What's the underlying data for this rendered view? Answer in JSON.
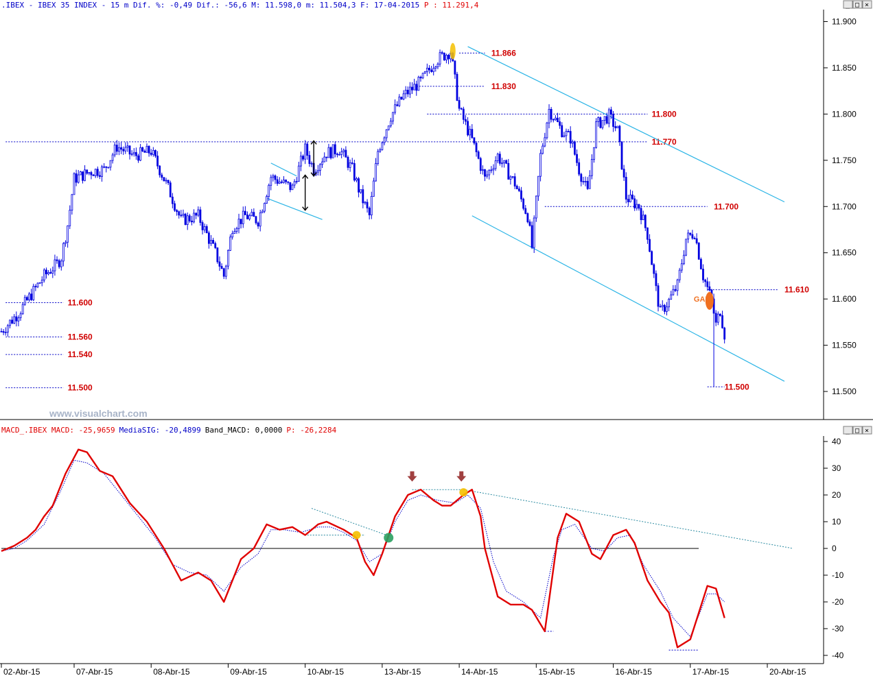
{
  "price_panel": {
    "header": {
      "prefix": ".IBEX - IBEX 35 INDEX -  15 m Dif. %: -0,49 Dif.: -56,6 M: 11.598,0 m: 11.504,3 F: 17-04-2015 ",
      "last_label": "P : 11.291,4",
      "colors": {
        "text": "#0000c8",
        "last": "#e00000"
      }
    },
    "watermark": "www.visualchart.com",
    "gap_label": "GAP",
    "colors": {
      "candles": "#0000e0",
      "channel": "#2ab4e6",
      "levels": "#0000c8",
      "level_text": "#d00000",
      "gap": "#f07020",
      "highlight": "#f5c000"
    }
  },
  "macd_panel": {
    "header": {
      "macd": "MACD_.IBEX MACD: -25,9659",
      "signal": "MediaSIG: -20,4899",
      "band": "Band_MACD: 0,0000",
      "last": "P: -26,2284"
    },
    "colors": {
      "macd": "#e00000",
      "signal": "#0000c8",
      "zero": "#000000",
      "arrow": "#a04040",
      "yellow": "#f5c000",
      "green": "#2aa060"
    }
  },
  "chart_data": [
    {
      "type": "candlestick",
      "instrument": "IBEX 35",
      "timeframe": "15 m",
      "ylim": [
        11480,
        11910
      ],
      "y_ticks": [
        11500,
        11550,
        11600,
        11650,
        11700,
        11750,
        11800,
        11850,
        11900
      ],
      "y_tick_labels": [
        "11.500",
        "11.550",
        "11.600",
        "11.650",
        "11.700",
        "11.750",
        "11.800",
        "11.850",
        "11.900"
      ],
      "x_ticks": [
        {
          "label": "02-Abr-15",
          "bar": 0
        },
        {
          "label": "07-Abr-15",
          "bar": 34
        },
        {
          "label": "08-Abr-15",
          "bar": 70
        },
        {
          "label": "09-Abr-15",
          "bar": 106
        },
        {
          "label": "10-Abr-15",
          "bar": 142
        },
        {
          "label": "13-Abr-15",
          "bar": 178
        },
        {
          "label": "14-Abr-15",
          "bar": 214
        },
        {
          "label": "15-Abr-15",
          "bar": 250
        },
        {
          "label": "16-Abr-15",
          "bar": 286
        },
        {
          "label": "17-Abr-15",
          "bar": 322
        },
        {
          "label": "20-Abr-15",
          "bar": 358
        }
      ],
      "total_bars": 392,
      "price_path": [
        [
          0,
          11565
        ],
        [
          8,
          11585
        ],
        [
          14,
          11605
        ],
        [
          20,
          11625
        ],
        [
          26,
          11638
        ],
        [
          28,
          11645
        ],
        [
          31,
          11680
        ],
        [
          34,
          11730
        ],
        [
          42,
          11738
        ],
        [
          48,
          11740
        ],
        [
          54,
          11765
        ],
        [
          62,
          11755
        ],
        [
          70,
          11760
        ],
        [
          78,
          11720
        ],
        [
          84,
          11685
        ],
        [
          92,
          11690
        ],
        [
          100,
          11650
        ],
        [
          104,
          11625
        ],
        [
          108,
          11678
        ],
        [
          114,
          11690
        ],
        [
          120,
          11685
        ],
        [
          126,
          11732
        ],
        [
          136,
          11720
        ],
        [
          142,
          11762
        ],
        [
          146,
          11740
        ],
        [
          152,
          11758
        ],
        [
          158,
          11762
        ],
        [
          164,
          11740
        ],
        [
          168,
          11712
        ],
        [
          172,
          11690
        ],
        [
          176,
          11760
        ],
        [
          182,
          11798
        ],
        [
          188,
          11820
        ],
        [
          196,
          11835
        ],
        [
          203,
          11858
        ],
        [
          210,
          11868
        ],
        [
          214,
          11805
        ],
        [
          220,
          11772
        ],
        [
          226,
          11730
        ],
        [
          232,
          11755
        ],
        [
          240,
          11725
        ],
        [
          246,
          11690
        ],
        [
          248,
          11656
        ],
        [
          252,
          11755
        ],
        [
          256,
          11805
        ],
        [
          262,
          11782
        ],
        [
          266,
          11774
        ],
        [
          270,
          11740
        ],
        [
          274,
          11715
        ],
        [
          278,
          11788
        ],
        [
          284,
          11798
        ],
        [
          288,
          11782
        ],
        [
          292,
          11710
        ],
        [
          298,
          11700
        ],
        [
          302,
          11670
        ],
        [
          306,
          11610
        ],
        [
          308,
          11585
        ],
        [
          312,
          11598
        ],
        [
          316,
          11615
        ],
        [
          320,
          11665
        ],
        [
          324,
          11672
        ],
        [
          328,
          11625
        ],
        [
          330,
          11612
        ],
        [
          332,
          11598
        ],
        [
          334,
          11572
        ],
        [
          336,
          11588
        ],
        [
          338,
          11562
        ]
      ],
      "spike_low": {
        "bar": 333,
        "value": 11505
      },
      "levels": [
        {
          "label": "11.866",
          "value": 11866,
          "x0_bar": 214,
          "x1_bar": 226,
          "label_bar": 229
        },
        {
          "label": "11.830",
          "value": 11830,
          "x0_bar": 194,
          "x1_bar": 226,
          "label_bar": 229
        },
        {
          "label": "11.800",
          "value": 11800,
          "x0_bar": 199,
          "x1_bar": 302,
          "label_bar": 304
        },
        {
          "label": "11.770",
          "value": 11770,
          "x0_bar": 2,
          "x1_bar": 302,
          "label_bar": 304
        },
        {
          "label": "11.700",
          "value": 11700,
          "x0_bar": 254,
          "x1_bar": 330,
          "label_bar": 333
        },
        {
          "label": "11.610",
          "value": 11610,
          "x0_bar": 330,
          "x1_bar": 363,
          "label_bar": 366
        },
        {
          "label": "11.600",
          "value": 11596,
          "x0_bar": 2,
          "x1_bar": 29,
          "label_bar": 31
        },
        {
          "label": "11.560",
          "value": 11559,
          "x0_bar": 2,
          "x1_bar": 29,
          "label_bar": 31
        },
        {
          "label": "11.540",
          "value": 11540,
          "x0_bar": 2,
          "x1_bar": 29,
          "label_bar": 31
        },
        {
          "label": "11.500",
          "value": 11504,
          "x0_bar": 2,
          "x1_bar": 29,
          "label_bar": 31
        },
        {
          "label": "11.500",
          "value": 11505,
          "x0_bar": 330,
          "x1_bar": 338,
          "label_bar": 338
        }
      ],
      "channel": {
        "upper": [
          [
            218,
            11873
          ],
          [
            366,
            11705
          ]
        ],
        "lower": [
          [
            220,
            11690
          ],
          [
            366,
            11511
          ]
        ]
      },
      "flag": {
        "upper": [
          [
            126,
            11747
          ],
          [
            138,
            11733
          ]
        ],
        "lower": [
          [
            124,
            11709
          ],
          [
            150,
            11686
          ]
        ]
      }
    },
    {
      "type": "line",
      "title": "MACD_.IBEX",
      "ylim": [
        -42,
        42
      ],
      "y_ticks": [
        40,
        30,
        20,
        10,
        0,
        -10,
        -20,
        -30,
        -40
      ],
      "series": [
        {
          "name": "MACD",
          "values": [
            [
              0,
              -1
            ],
            [
              6,
              1
            ],
            [
              12,
              4
            ],
            [
              16,
              7
            ],
            [
              20,
              12
            ],
            [
              24,
              16
            ],
            [
              30,
              28
            ],
            [
              36,
              37
            ],
            [
              40,
              36
            ],
            [
              46,
              29
            ],
            [
              52,
              27
            ],
            [
              60,
              17
            ],
            [
              68,
              10
            ],
            [
              76,
              0
            ],
            [
              84,
              -12
            ],
            [
              92,
              -9
            ],
            [
              98,
              -12
            ],
            [
              104,
              -20
            ],
            [
              112,
              -4
            ],
            [
              118,
              0
            ],
            [
              124,
              9
            ],
            [
              130,
              7
            ],
            [
              136,
              8
            ],
            [
              142,
              5
            ],
            [
              148,
              9
            ],
            [
              152,
              10
            ],
            [
              160,
              7
            ],
            [
              166,
              4
            ],
            [
              170,
              -5
            ],
            [
              174,
              -10
            ],
            [
              178,
              -2
            ],
            [
              184,
              12
            ],
            [
              190,
              20
            ],
            [
              196,
              22
            ],
            [
              202,
              18
            ],
            [
              206,
              16
            ],
            [
              210,
              16
            ],
            [
              216,
              20
            ],
            [
              220,
              22
            ],
            [
              224,
              12
            ],
            [
              226,
              0
            ],
            [
              232,
              -18
            ],
            [
              238,
              -21
            ],
            [
              244,
              -21
            ],
            [
              248,
              -23
            ],
            [
              254,
              -31
            ],
            [
              260,
              4
            ],
            [
              264,
              13
            ],
            [
              270,
              10
            ],
            [
              276,
              -2
            ],
            [
              280,
              -4
            ],
            [
              286,
              5
            ],
            [
              292,
              7
            ],
            [
              296,
              2
            ],
            [
              302,
              -12
            ],
            [
              308,
              -20
            ],
            [
              312,
              -24
            ],
            [
              316,
              -37
            ],
            [
              322,
              -34
            ],
            [
              330,
              -14
            ],
            [
              334,
              -15
            ],
            [
              338,
              -26
            ]
          ]
        },
        {
          "name": "MediaSIG",
          "values": [
            [
              0,
              -1
            ],
            [
              6,
              0
            ],
            [
              12,
              3
            ],
            [
              20,
              9
            ],
            [
              28,
              22
            ],
            [
              34,
              33
            ],
            [
              40,
              32
            ],
            [
              48,
              28
            ],
            [
              56,
              20
            ],
            [
              64,
              12
            ],
            [
              72,
              4
            ],
            [
              80,
              -6
            ],
            [
              88,
              -9
            ],
            [
              96,
              -10
            ],
            [
              104,
              -16
            ],
            [
              112,
              -7
            ],
            [
              120,
              -2
            ],
            [
              126,
              7
            ],
            [
              132,
              7
            ],
            [
              140,
              6
            ],
            [
              148,
              8
            ],
            [
              154,
              8
            ],
            [
              160,
              6
            ],
            [
              166,
              3
            ],
            [
              172,
              -5
            ],
            [
              178,
              -2
            ],
            [
              184,
              10
            ],
            [
              190,
              18
            ],
            [
              196,
              20
            ],
            [
              204,
              18
            ],
            [
              212,
              17
            ],
            [
              218,
              20
            ],
            [
              224,
              15
            ],
            [
              230,
              -5
            ],
            [
              236,
              -16
            ],
            [
              244,
              -20
            ],
            [
              252,
              -26
            ],
            [
              258,
              -3
            ],
            [
              262,
              7
            ],
            [
              268,
              9
            ],
            [
              276,
              0
            ],
            [
              282,
              -1
            ],
            [
              288,
              4
            ],
            [
              294,
              5
            ],
            [
              300,
              -6
            ],
            [
              308,
              -16
            ],
            [
              314,
              -26
            ],
            [
              322,
              -33
            ],
            [
              330,
              -17
            ],
            [
              334,
              -17
            ],
            [
              338,
              -20
            ]
          ]
        }
      ],
      "annotations": {
        "min_lines": [
          [
            254,
            258,
            -31
          ],
          [
            312,
            326,
            -38
          ]
        ],
        "upper_trend": [
          [
            192,
            215,
            22
          ],
          [
            216,
            370,
            0
          ]
        ],
        "lower_trend": [
          [
            145,
            172,
            15
          ],
          [
            143,
            164,
            5
          ]
        ]
      }
    }
  ]
}
